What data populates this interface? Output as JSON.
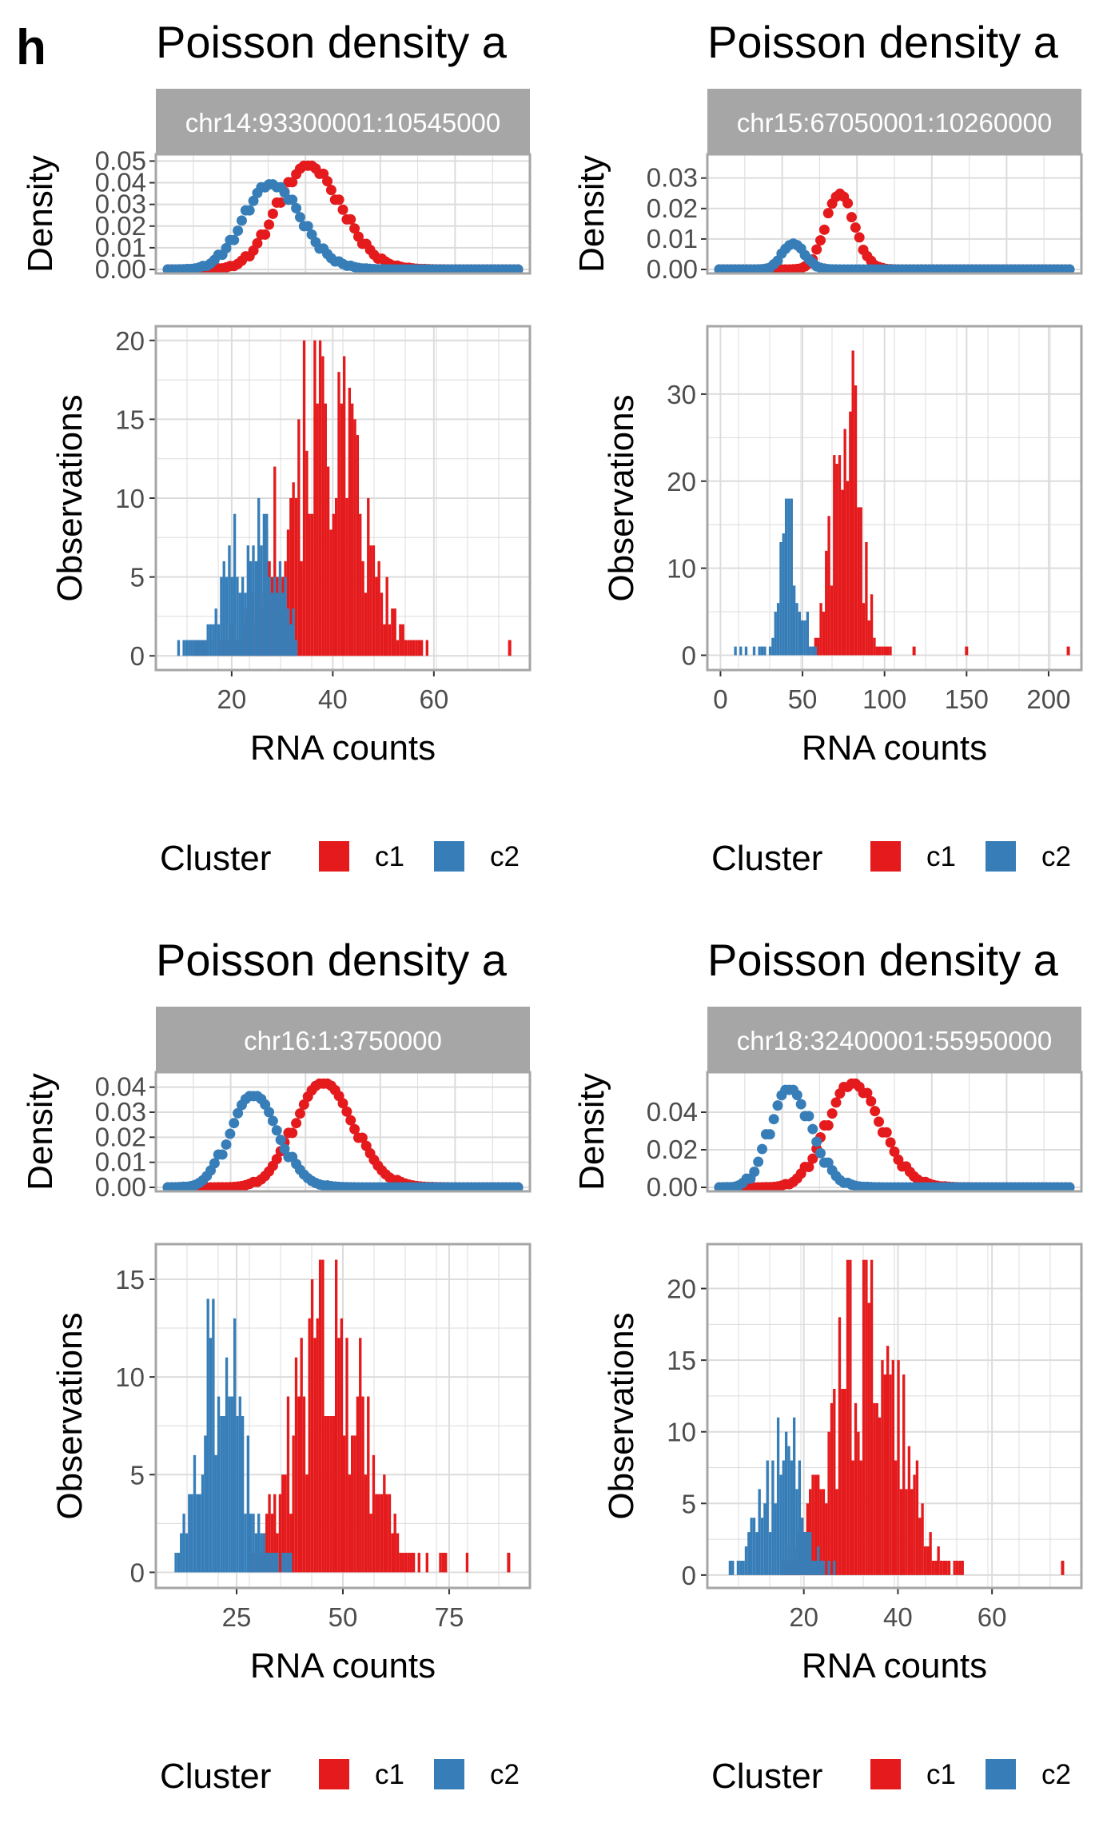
{
  "figure": {
    "panel_letter": "h",
    "colors": {
      "c1": "#e41a1c",
      "c2": "#377eb8",
      "strip": "#a6a6a6",
      "grid": "#dcdcdc",
      "frame": "#a6a6a6"
    }
  },
  "chart_data": [
    {
      "type": "bar",
      "title": "Poisson density a",
      "strip": "chr14:93300001:10545000",
      "legend": {
        "title": "Cluster",
        "entries": [
          "c1",
          "c2"
        ],
        "position": "bottom"
      },
      "density": {
        "ylabel": "Density",
        "yticks": [
          "0.00",
          "0.01",
          "0.02",
          "0.03",
          "0.04",
          "0.05"
        ],
        "yticks_values": [
          0,
          0.01,
          0.02,
          0.03,
          0.04,
          0.05
        ],
        "ylim": [
          0,
          0.052
        ],
        "series": [
          {
            "cluster": "c1",
            "lambda": 36,
            "scale": 1.0
          },
          {
            "cluster": "c2",
            "lambda": 29,
            "scale": 0.82
          }
        ],
        "x_range": [
          9,
          75
        ]
      },
      "histogram": {
        "xlabel": "RNA counts",
        "ylabel": "Observations",
        "xticks": [
          "20",
          "40",
          "60"
        ],
        "xticks_values": [
          20,
          40,
          60
        ],
        "yticks": [
          "0",
          "5",
          "10",
          "15",
          "20"
        ],
        "yticks_values": [
          0,
          5,
          10,
          15,
          20
        ],
        "xlim": [
          5,
          79
        ],
        "ylim": [
          -0.9,
          20.9
        ],
        "c1": {
          "mean": 37,
          "sd": 7.5,
          "peak": 20,
          "x_range": [
            12,
            60
          ],
          "outliers": [
            [
              75,
              1
            ]
          ]
        },
        "c2": {
          "mean": 24,
          "sd": 5,
          "peak": 10,
          "x_range": [
            9,
            33
          ]
        }
      }
    },
    {
      "type": "bar",
      "title": "Poisson density a",
      "strip": "chr15:67050001:10260000",
      "legend": {
        "title": "Cluster",
        "entries": [
          "c1",
          "c2"
        ],
        "position": "bottom"
      },
      "density": {
        "ylabel": "Density",
        "yticks": [
          "0.00",
          "0.01",
          "0.02",
          "0.03"
        ],
        "yticks_values": [
          0,
          0.01,
          0.02,
          0.03
        ],
        "ylim": [
          0,
          0.037
        ],
        "series": [
          {
            "cluster": "c1",
            "lambda": 73,
            "scale": 0.73
          },
          {
            "cluster": "c2",
            "lambda": 45,
            "scale": 0.25
          }
        ],
        "x_range": [
          0,
          211
        ]
      },
      "histogram": {
        "xlabel": "RNA counts",
        "ylabel": "Observations",
        "xticks": [
          "0",
          "50",
          "100",
          "150",
          "200"
        ],
        "xticks_values": [
          0,
          50,
          100,
          150,
          200
        ],
        "yticks": [
          "0",
          "10",
          "20",
          "30"
        ],
        "yticks_values": [
          0,
          10,
          20,
          30
        ],
        "xlim": [
          -8,
          220
        ],
        "ylim": [
          -1.7,
          37.8
        ],
        "c1": {
          "mean": 76,
          "sd": 8,
          "peak": 36,
          "x_range": [
            55,
            105
          ],
          "outliers": [
            [
              118,
              1
            ],
            [
              150,
              1
            ],
            [
              212,
              1
            ]
          ]
        },
        "c2": {
          "mean": 42,
          "sd": 6,
          "peak": 18,
          "x_range": [
            5,
            58
          ]
        }
      }
    },
    {
      "type": "bar",
      "title": "Poisson density a",
      "strip": "chr16:1:3750000",
      "legend": {
        "title": "Cluster",
        "entries": [
          "c1",
          "c2"
        ],
        "position": "bottom"
      },
      "density": {
        "ylabel": "Density",
        "yticks": [
          "0.00",
          "0.01",
          "0.02",
          "0.03",
          "0.04"
        ],
        "yticks_values": [
          0,
          0.01,
          0.02,
          0.03,
          0.04
        ],
        "ylim": [
          0,
          0.045
        ],
        "series": [
          {
            "cluster": "c1",
            "lambda": 46,
            "scale": 1.0
          },
          {
            "cluster": "c2",
            "lambda": 30,
            "scale": 0.88
          }
        ],
        "x_range": [
          10,
          90
        ]
      },
      "histogram": {
        "xlabel": "RNA counts",
        "ylabel": "Observations",
        "xticks": [
          "25",
          "50",
          "75"
        ],
        "xticks_values": [
          25,
          50,
          75
        ],
        "yticks": [
          "0",
          "5",
          "10",
          "15"
        ],
        "yticks_values": [
          0,
          5,
          10,
          15
        ],
        "xlim": [
          6,
          94
        ],
        "ylim": [
          -0.8,
          16.8
        ],
        "c1": {
          "mean": 47,
          "sd": 8,
          "peak": 16,
          "x_range": [
            28,
            80
          ],
          "outliers": [
            [
              89,
              1
            ]
          ]
        },
        "c2": {
          "mean": 21,
          "sd": 5,
          "peak": 14,
          "x_range": [
            10,
            40
          ]
        }
      }
    },
    {
      "type": "bar",
      "title": "Poisson density a",
      "strip": "chr18:32400001:55950000",
      "legend": {
        "title": "Cluster",
        "entries": [
          "c1",
          "c2"
        ],
        "position": "bottom"
      },
      "density": {
        "ylabel": "Density",
        "yticks": [
          "0.00",
          "0.02",
          "0.04"
        ],
        "yticks_values": [
          0,
          0.02,
          0.04
        ],
        "ylim": [
          0,
          0.06
        ],
        "series": [
          {
            "cluster": "c1",
            "lambda": 31,
            "scale": 1.0
          },
          {
            "cluster": "c2",
            "lambda": 18,
            "scale": 0.94
          }
        ],
        "x_range": [
          3,
          75
        ]
      },
      "histogram": {
        "xlabel": "RNA counts",
        "ylabel": "Observations",
        "xticks": [
          "20",
          "40",
          "60"
        ],
        "xticks_values": [
          20,
          40,
          60
        ],
        "yticks": [
          "0",
          "5",
          "10",
          "15",
          "20"
        ],
        "yticks_values": [
          0,
          5,
          10,
          15,
          20
        ],
        "xlim": [
          -0.5,
          79
        ],
        "ylim": [
          -0.9,
          23.1
        ],
        "c1": {
          "mean": 33,
          "sd": 7,
          "peak": 22,
          "x_range": [
            15,
            55
          ],
          "outliers": [
            [
              75,
              1
            ]
          ]
        },
        "c2": {
          "mean": 15,
          "sd": 4,
          "peak": 11,
          "x_range": [
            4,
            27
          ]
        }
      }
    }
  ]
}
